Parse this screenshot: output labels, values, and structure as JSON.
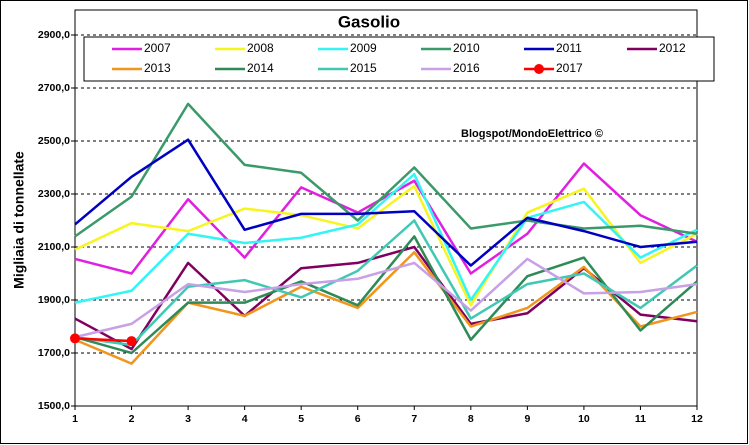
{
  "chart_data": {
    "type": "line",
    "title": "Gasolio",
    "y_label": "Migliaia di tonnellate",
    "annotation": "Blogspot/MondoElettrico ©",
    "x": [
      1,
      2,
      3,
      4,
      5,
      6,
      7,
      8,
      9,
      10,
      11,
      12
    ],
    "xlim": [
      1,
      12
    ],
    "xticks": [
      1,
      2,
      3,
      4,
      5,
      6,
      7,
      8,
      9,
      10,
      11,
      12
    ],
    "ylim": [
      1500,
      2900
    ],
    "yticks": [
      {
        "value": 1500,
        "label": "1500,0"
      },
      {
        "value": 1700,
        "label": "1700,0"
      },
      {
        "value": 1900,
        "label": "1900,0"
      },
      {
        "value": 2100,
        "label": "2100,0"
      },
      {
        "value": 2300,
        "label": "2300,0"
      },
      {
        "value": 2500,
        "label": "2500,0"
      },
      {
        "value": 2700,
        "label": "2700,0"
      },
      {
        "value": 2900,
        "label": "2900,0"
      }
    ],
    "grid": true,
    "series": [
      {
        "name": "2007",
        "color": "#e020e0",
        "values": [
          2055,
          2000,
          2280,
          2060,
          2325,
          2230,
          2350,
          2000,
          2150,
          2415,
          2220,
          2120
        ]
      },
      {
        "name": "2008",
        "color": "#f5f520",
        "values": [
          2090,
          2190,
          2160,
          2245,
          2220,
          2170,
          2330,
          1880,
          2230,
          2320,
          2040,
          2150
        ]
      },
      {
        "name": "2009",
        "color": "#33f5f5",
        "values": [
          1890,
          1935,
          2150,
          2115,
          2135,
          2185,
          2375,
          1900,
          2210,
          2270,
          2060,
          2165
        ]
      },
      {
        "name": "2010",
        "color": "#3a9a6a",
        "values": [
          2140,
          2290,
          2640,
          2410,
          2380,
          2200,
          2400,
          2170,
          2200,
          2170,
          2180,
          2150
        ]
      },
      {
        "name": "2011",
        "color": "#0000c0",
        "values": [
          2185,
          2365,
          2505,
          2165,
          2225,
          2225,
          2235,
          2030,
          2210,
          2160,
          2100,
          2120
        ]
      },
      {
        "name": "2012",
        "color": "#800060",
        "values": [
          1830,
          1715,
          2040,
          1840,
          2020,
          2040,
          2100,
          1810,
          1850,
          2020,
          1845,
          1820
        ]
      },
      {
        "name": "2013",
        "color": "#f0961e",
        "values": [
          1750,
          1660,
          1890,
          1840,
          1950,
          1870,
          2080,
          1800,
          1870,
          2025,
          1800,
          1855
        ]
      },
      {
        "name": "2014",
        "color": "#2e8b57",
        "values": [
          1760,
          1700,
          1890,
          1890,
          1970,
          1880,
          2140,
          1750,
          1990,
          2060,
          1785,
          1970
        ]
      },
      {
        "name": "2015",
        "color": "#40c8b4",
        "values": [
          1760,
          1730,
          1950,
          1975,
          1910,
          2010,
          2200,
          1830,
          1960,
          2000,
          1870,
          2030
        ]
      },
      {
        "name": "2016",
        "color": "#c8a0e6",
        "values": [
          1760,
          1810,
          1960,
          1930,
          1960,
          1980,
          2040,
          1860,
          2055,
          1925,
          1930,
          1960
        ]
      },
      {
        "name": "2017",
        "color": "#ff0000",
        "markers": true,
        "values": [
          1755,
          1745,
          null,
          null,
          null,
          null,
          null,
          null,
          null,
          null,
          null,
          null
        ]
      }
    ]
  }
}
